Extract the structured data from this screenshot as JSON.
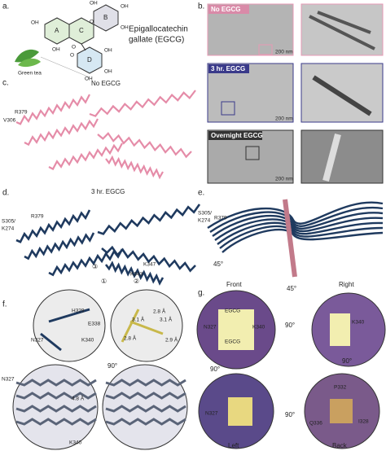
{
  "panel_a": {
    "label": "a.",
    "title_lines": [
      "Epigallocatechin",
      "gallate (EGCG)"
    ],
    "rings": [
      "A",
      "C",
      "B",
      "D"
    ],
    "atoms": [
      "OH",
      "OH",
      "OH",
      "OH",
      "OH",
      "OH",
      "OH",
      "OH",
      "O",
      "O",
      "O"
    ],
    "leaf": "Green tea"
  },
  "panel_b": {
    "label": "b.",
    "images": [
      {
        "condition": "No EGCG",
        "scale": "200 nm"
      },
      {
        "condition": "3 hr. EGCG",
        "scale": "200 nm"
      },
      {
        "condition": "Overnight EGCG",
        "scale": "200 nm"
      }
    ]
  },
  "panel_c": {
    "label": "c.",
    "title": "No EGCG",
    "residues": [
      "R379",
      "V306"
    ]
  },
  "panel_d": {
    "label": "d.",
    "title": "3 hr. EGCG",
    "residues": [
      "R379",
      "S305/",
      "K274",
      "K347",
      "K343"
    ],
    "sites": [
      "①",
      "②",
      "③"
    ]
  },
  "panel_e": {
    "label": "e.",
    "residues": [
      "S305/",
      "K274",
      "R379"
    ],
    "rotation": "45°"
  },
  "panel_f": {
    "label": "f.",
    "top_left": [
      "H329",
      "E338",
      "N327",
      "K340"
    ],
    "distances": [
      "2.8 Å",
      "3.1 Å",
      "3.1 Å",
      "2.8 Å",
      "2.9 Å"
    ],
    "rotation": "90°",
    "bottom": [
      "N327",
      "4.8 Å",
      "K340"
    ]
  },
  "panel_g": {
    "label": "g.",
    "views": [
      "Front",
      "Right",
      "Left",
      "Back"
    ],
    "rotation": "45°",
    "front": [
      "EGCG",
      "EGCG",
      "N327",
      "K340"
    ],
    "right": [
      "K340"
    ],
    "turns": [
      "90°",
      "90°",
      "90°",
      "90°"
    ],
    "back": [
      "P332",
      "Q336",
      "I328"
    ],
    "left": [
      "N327"
    ]
  }
}
